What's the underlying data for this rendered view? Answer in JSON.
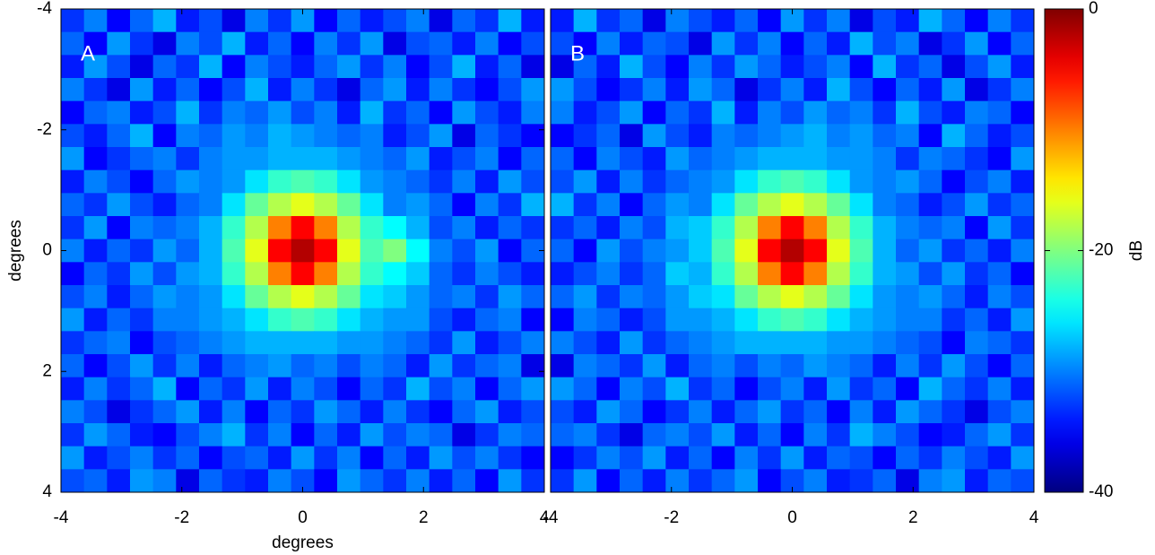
{
  "chart_data": [
    {
      "type": "heatmap",
      "annotation": "A",
      "xlabel": "degrees",
      "ylabel": "degrees",
      "colormap": "jet",
      "xlim": [
        -4,
        4
      ],
      "ylim": [
        -4,
        4
      ],
      "y_reversed": true,
      "xticks": [
        -4,
        -2,
        0,
        2,
        4
      ],
      "yticks": [
        -4,
        -2,
        0,
        2,
        4
      ],
      "values": [
        [
          -33,
          -30,
          -35,
          -31,
          -28,
          -34,
          -32,
          -36,
          -30,
          -33,
          -29,
          -35,
          -31,
          -34,
          -32,
          -30,
          -36,
          -31,
          -33,
          -28,
          -34
        ],
        [
          -31,
          -35,
          -29,
          -33,
          -36,
          -30,
          -32,
          -28,
          -34,
          -31,
          -35,
          -30,
          -33,
          -29,
          -36,
          -32,
          -31,
          -34,
          -30,
          -35,
          -32
        ],
        [
          -34,
          -29,
          -32,
          -36,
          -31,
          -33,
          -28,
          -35,
          -30,
          -32,
          -34,
          -31,
          -29,
          -33,
          -30,
          -35,
          -32,
          -28,
          -34,
          -31,
          -36
        ],
        [
          -30,
          -33,
          -36,
          -29,
          -34,
          -31,
          -35,
          -32,
          -28,
          -34,
          -30,
          -33,
          -36,
          -31,
          -29,
          -34,
          -30,
          -33,
          -35,
          -32,
          -29
        ],
        [
          -35,
          -31,
          -30,
          -34,
          -32,
          -28,
          -33,
          -30,
          -31,
          -29,
          -32,
          -30,
          -34,
          -28,
          -33,
          -31,
          -35,
          -29,
          -32,
          -34,
          -30
        ],
        [
          -32,
          -34,
          -31,
          -28,
          -35,
          -30,
          -31,
          -29,
          -30,
          -28,
          -29,
          -30,
          -31,
          -30,
          -34,
          -32,
          -29,
          -36,
          -31,
          -33,
          -35
        ],
        [
          -29,
          -35,
          -33,
          -31,
          -30,
          -33,
          -30,
          -29,
          -29,
          -28,
          -28,
          -28,
          -29,
          -30,
          -31,
          -29,
          -34,
          -32,
          -30,
          -35,
          -31
        ],
        [
          -34,
          -30,
          -32,
          -35,
          -31,
          -29,
          -30,
          -29,
          -26,
          -23,
          -22,
          -23,
          -26,
          -29,
          -30,
          -31,
          -33,
          -30,
          -34,
          -29,
          -32
        ],
        [
          -31,
          -33,
          -29,
          -32,
          -34,
          -31,
          -30,
          -26,
          -21,
          -18,
          -16,
          -18,
          -21,
          -26,
          -30,
          -29,
          -31,
          -35,
          -30,
          -33,
          -28
        ],
        [
          -33,
          -29,
          -35,
          -30,
          -31,
          -30,
          -28,
          -23,
          -18,
          -10,
          -5,
          -10,
          -18,
          -23,
          -25,
          -28,
          -32,
          -30,
          -34,
          -31,
          -33
        ],
        [
          -30,
          -34,
          -31,
          -33,
          -29,
          -31,
          -28,
          -22,
          -16,
          -5,
          -2,
          -5,
          -16,
          -22,
          -20,
          -25,
          -30,
          -32,
          -29,
          -35,
          -31
        ],
        [
          -35,
          -31,
          -33,
          -29,
          -32,
          -29,
          -28,
          -23,
          -18,
          -10,
          -5,
          -10,
          -18,
          -23,
          -25,
          -27,
          -31,
          -33,
          -30,
          -32,
          -34
        ],
        [
          -32,
          -30,
          -34,
          -31,
          -29,
          -30,
          -29,
          -26,
          -21,
          -18,
          -16,
          -18,
          -21,
          -26,
          -27,
          -29,
          -31,
          -30,
          -33,
          -29,
          -31
        ],
        [
          -29,
          -34,
          -31,
          -33,
          -30,
          -30,
          -29,
          -28,
          -26,
          -23,
          -22,
          -23,
          -26,
          -28,
          -29,
          -29,
          -32,
          -34,
          -31,
          -30,
          -35
        ],
        [
          -33,
          -31,
          -30,
          -35,
          -32,
          -31,
          -30,
          -29,
          -28,
          -28,
          -28,
          -28,
          -29,
          -29,
          -30,
          -31,
          -33,
          -29,
          -34,
          -32,
          -30
        ],
        [
          -31,
          -35,
          -32,
          -29,
          -33,
          -30,
          -34,
          -31,
          -30,
          -29,
          -31,
          -30,
          -32,
          -30,
          -31,
          -34,
          -29,
          -33,
          -31,
          -30,
          -36
        ],
        [
          -34,
          -30,
          -33,
          -31,
          -28,
          -35,
          -31,
          -33,
          -29,
          -34,
          -30,
          -32,
          -35,
          -31,
          -33,
          -28,
          -32,
          -30,
          -35,
          -31,
          -29
        ],
        [
          -30,
          -32,
          -36,
          -33,
          -31,
          -29,
          -34,
          -30,
          -35,
          -31,
          -33,
          -29,
          -31,
          -34,
          -30,
          -33,
          -35,
          -31,
          -29,
          -34,
          -32
        ],
        [
          -33,
          -29,
          -31,
          -34,
          -35,
          -32,
          -30,
          -28,
          -33,
          -30,
          -35,
          -31,
          -34,
          -29,
          -32,
          -30,
          -31,
          -36,
          -33,
          -30,
          -31
        ],
        [
          -29,
          -34,
          -32,
          -30,
          -33,
          -31,
          -35,
          -32,
          -31,
          -34,
          -29,
          -33,
          -30,
          -35,
          -31,
          -34,
          -29,
          -32,
          -30,
          -33,
          -35
        ],
        [
          -32,
          -31,
          -34,
          -29,
          -30,
          -36,
          -31,
          -33,
          -34,
          -30,
          -32,
          -35,
          -29,
          -31,
          -33,
          -30,
          -34,
          -31,
          -35,
          -29,
          -33
        ]
      ]
    },
    {
      "type": "heatmap",
      "annotation": "B",
      "colormap": "jet",
      "xlim": [
        -4,
        4
      ],
      "ylim": [
        -4,
        4
      ],
      "y_reversed": true,
      "xticks": [
        -4,
        -2,
        0,
        2,
        4
      ],
      "values": [
        [
          -34,
          -28,
          -33,
          -31,
          -36,
          -30,
          -32,
          -34,
          -31,
          -35,
          -29,
          -33,
          -30,
          -36,
          -32,
          -34,
          -28,
          -31,
          -35,
          -30,
          -33
        ],
        [
          -32,
          -35,
          -30,
          -34,
          -31,
          -32,
          -36,
          -29,
          -33,
          -30,
          -35,
          -31,
          -34,
          -28,
          -32,
          -30,
          -36,
          -33,
          -29,
          -35,
          -31
        ],
        [
          -36,
          -31,
          -34,
          -28,
          -32,
          -35,
          -30,
          -33,
          -29,
          -31,
          -34,
          -32,
          -30,
          -35,
          -28,
          -33,
          -31,
          -36,
          -32,
          -29,
          -34
        ],
        [
          -29,
          -32,
          -35,
          -33,
          -30,
          -34,
          -29,
          -31,
          -36,
          -33,
          -30,
          -34,
          -28,
          -32,
          -35,
          -31,
          -34,
          -29,
          -36,
          -33,
          -30
        ],
        [
          -30,
          -34,
          -32,
          -29,
          -35,
          -31,
          -33,
          -28,
          -34,
          -30,
          -32,
          -29,
          -31,
          -30,
          -33,
          -28,
          -32,
          -34,
          -30,
          -31,
          -35
        ],
        [
          -35,
          -33,
          -31,
          -36,
          -29,
          -32,
          -34,
          -30,
          -31,
          -30,
          -29,
          -28,
          -30,
          -29,
          -31,
          -30,
          -35,
          -28,
          -31,
          -34,
          -32
        ],
        [
          -31,
          -35,
          -30,
          -32,
          -34,
          -29,
          -31,
          -30,
          -29,
          -28,
          -28,
          -28,
          -29,
          -29,
          -30,
          -33,
          -30,
          -31,
          -33,
          -35,
          -29
        ],
        [
          -32,
          -29,
          -34,
          -30,
          -33,
          -31,
          -30,
          -29,
          -26,
          -23,
          -22,
          -23,
          -26,
          -29,
          -30,
          -29,
          -31,
          -35,
          -32,
          -30,
          -34
        ],
        [
          -28,
          -33,
          -30,
          -35,
          -31,
          -29,
          -30,
          -26,
          -21,
          -18,
          -16,
          -18,
          -21,
          -26,
          -30,
          -31,
          -34,
          -32,
          -29,
          -33,
          -31
        ],
        [
          -33,
          -31,
          -34,
          -30,
          -32,
          -28,
          -27,
          -23,
          -18,
          -10,
          -5,
          -10,
          -18,
          -23,
          -28,
          -30,
          -31,
          -30,
          -35,
          -29,
          -33
        ],
        [
          -31,
          -35,
          -29,
          -32,
          -30,
          -29,
          -27,
          -22,
          -16,
          -5,
          -2,
          -5,
          -16,
          -22,
          -28,
          -31,
          -29,
          -33,
          -31,
          -34,
          -30
        ],
        [
          -34,
          -32,
          -30,
          -33,
          -31,
          -27,
          -28,
          -23,
          -18,
          -10,
          -5,
          -10,
          -18,
          -23,
          -28,
          -29,
          -32,
          -29,
          -33,
          -31,
          -35
        ],
        [
          -31,
          -29,
          -33,
          -30,
          -31,
          -29,
          -27,
          -26,
          -21,
          -18,
          -16,
          -18,
          -21,
          -26,
          -29,
          -30,
          -29,
          -31,
          -34,
          -30,
          -32
        ],
        [
          -35,
          -30,
          -31,
          -34,
          -32,
          -29,
          -29,
          -28,
          -26,
          -23,
          -22,
          -23,
          -26,
          -28,
          -29,
          -30,
          -30,
          -33,
          -31,
          -34,
          -29
        ],
        [
          -30,
          -32,
          -34,
          -29,
          -33,
          -31,
          -30,
          -29,
          -28,
          -28,
          -28,
          -28,
          -29,
          -29,
          -30,
          -31,
          -32,
          -35,
          -30,
          -31,
          -33
        ],
        [
          -36,
          -30,
          -31,
          -33,
          -29,
          -34,
          -31,
          -30,
          -32,
          -30,
          -31,
          -29,
          -30,
          -31,
          -34,
          -30,
          -33,
          -29,
          -32,
          -35,
          -31
        ],
        [
          -29,
          -31,
          -35,
          -30,
          -32,
          -28,
          -33,
          -31,
          -35,
          -32,
          -30,
          -34,
          -29,
          -33,
          -31,
          -35,
          -28,
          -31,
          -33,
          -30,
          -34
        ],
        [
          -32,
          -34,
          -29,
          -31,
          -35,
          -33,
          -30,
          -34,
          -31,
          -29,
          -33,
          -31,
          -35,
          -30,
          -34,
          -29,
          -31,
          -33,
          -36,
          -32,
          -30
        ],
        [
          -31,
          -30,
          -33,
          -36,
          -31,
          -30,
          -32,
          -29,
          -34,
          -31,
          -35,
          -30,
          -33,
          -28,
          -30,
          -32,
          -35,
          -34,
          -31,
          -29,
          -33
        ],
        [
          -35,
          -33,
          -30,
          -32,
          -29,
          -34,
          -31,
          -35,
          -30,
          -33,
          -29,
          -34,
          -31,
          -32,
          -35,
          -31,
          -33,
          -30,
          -32,
          -34,
          -29
        ],
        [
          -33,
          -29,
          -35,
          -31,
          -34,
          -30,
          -33,
          -31,
          -29,
          -35,
          -32,
          -30,
          -34,
          -33,
          -31,
          -36,
          -30,
          -29,
          -34,
          -31,
          -32
        ]
      ]
    }
  ],
  "colorbar": {
    "label": "dB",
    "colormap": "jet",
    "lim": [
      -40,
      0
    ],
    "ticks": [
      0,
      -20,
      -40
    ]
  }
}
